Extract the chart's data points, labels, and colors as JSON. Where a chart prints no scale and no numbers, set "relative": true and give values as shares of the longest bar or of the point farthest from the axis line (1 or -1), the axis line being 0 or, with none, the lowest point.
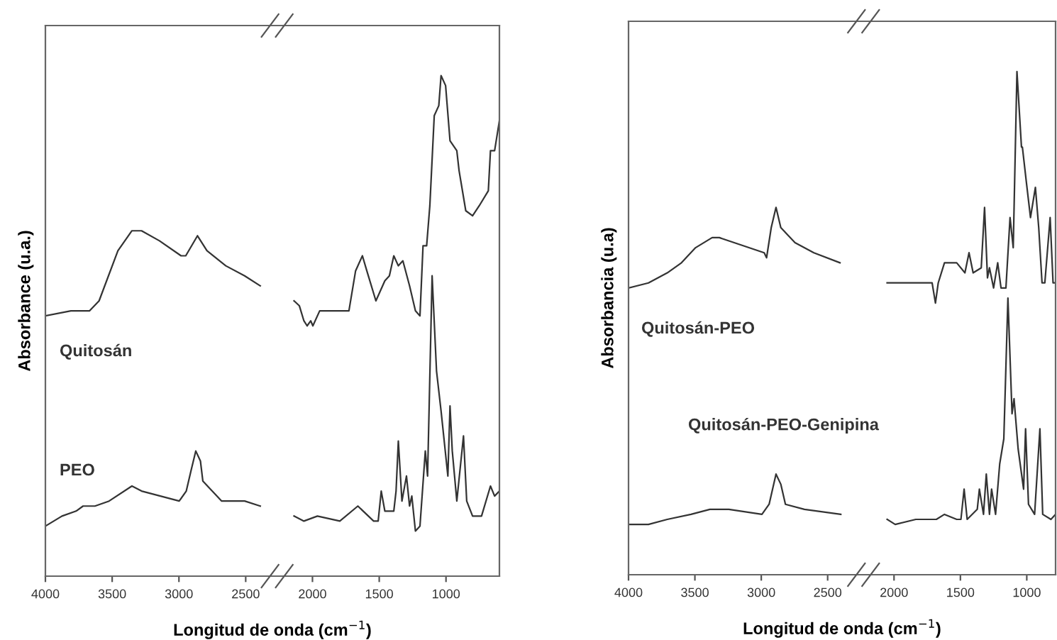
{
  "chart_data": [
    {
      "type": "line",
      "relative": true,
      "ylabel": "Absorbance (u.a.)",
      "xlabel": "Longitud de onda (cm$^{−1}$)",
      "xlim": [
        4000,
        600
      ],
      "xticks": [
        4000,
        3500,
        3000,
        2500,
        2000,
        1500,
        1000
      ],
      "series": [
        {
          "name": "Quitosán",
          "color": "#333333",
          "x": [
            4000,
            3809,
            3669,
            3598,
            3457,
            3352,
            3280,
            3146,
            2984,
            2949,
            2861,
            2790,
            2649,
            2508,
            2391,
            null,
            2138,
            2098,
            2064,
            2040,
            2013,
            1997,
            1946,
            1795,
            1727,
            1677,
            1626,
            1593,
            1525,
            1458,
            1424,
            1391,
            1357,
            1323,
            1273,
            1229,
            1195,
            1172,
            1145,
            1121,
            1088,
            1054,
            1037,
            1003,
            970,
            919,
            902,
            852,
            801,
            751,
            683,
            667,
            636,
            600
          ],
          "values": [
            0.52,
            0.53,
            0.53,
            0.55,
            0.65,
            0.69,
            0.69,
            0.67,
            0.64,
            0.64,
            0.68,
            0.65,
            0.62,
            0.6,
            0.58,
            null,
            0.55,
            0.54,
            0.51,
            0.5,
            0.51,
            0.5,
            0.53,
            0.53,
            0.53,
            0.61,
            0.64,
            0.61,
            0.55,
            0.59,
            0.6,
            0.64,
            0.62,
            0.63,
            0.58,
            0.53,
            0.52,
            0.66,
            0.66,
            0.74,
            0.92,
            0.94,
            1.0,
            0.98,
            0.87,
            0.85,
            0.81,
            0.73,
            0.72,
            0.74,
            0.77,
            0.85,
            0.85,
            0.91
          ]
        },
        {
          "name": "PEO",
          "color": "#333333",
          "x": [
            4000,
            3876,
            3770,
            3718,
            3629,
            3523,
            3352,
            3280,
            2998,
            2945,
            2910,
            2874,
            2839,
            2821,
            2680,
            2508,
            2391,
            null,
            2138,
            2064,
            1963,
            1795,
            1660,
            1542,
            1508,
            1485,
            1458,
            1391,
            1374,
            1357,
            1330,
            1296,
            1273,
            1256,
            1229,
            1195,
            1155,
            1138,
            1104,
            1071,
            1037,
            986,
            970,
            953,
            919,
            869,
            845,
            801,
            734,
            667,
            636,
            600
          ],
          "values": [
            0.1,
            0.12,
            0.13,
            0.14,
            0.14,
            0.15,
            0.18,
            0.17,
            0.15,
            0.17,
            0.21,
            0.25,
            0.23,
            0.19,
            0.15,
            0.15,
            0.14,
            null,
            0.12,
            0.11,
            0.12,
            0.11,
            0.14,
            0.11,
            0.11,
            0.17,
            0.13,
            0.13,
            0.17,
            0.27,
            0.15,
            0.2,
            0.14,
            0.16,
            0.09,
            0.1,
            0.25,
            0.2,
            0.6,
            0.41,
            0.33,
            0.2,
            0.34,
            0.25,
            0.15,
            0.28,
            0.15,
            0.12,
            0.12,
            0.18,
            0.16,
            0.17
          ]
        }
      ]
    },
    {
      "type": "line",
      "relative": true,
      "ylabel": "Absorbancia (u.a)",
      "xlabel": "Longitud de onda (cm$^{−1}$)",
      "xlim": [
        4000,
        783
      ],
      "xticks": [
        4000,
        3500,
        3000,
        2500,
        2000,
        1500,
        1000
      ],
      "series": [
        {
          "name": "Quitosán-PEO",
          "color": "#333333",
          "x": [
            4000,
            3850,
            3708,
            3601,
            3495,
            3370,
            3316,
            2978,
            2960,
            2925,
            2889,
            2853,
            2746,
            2604,
            2407,
            null,
            2052,
            1991,
            1806,
            1713,
            1688,
            1667,
            1620,
            1528,
            1466,
            1435,
            1404,
            1343,
            1318,
            1296,
            1281,
            1250,
            1219,
            1194,
            1157,
            1126,
            1102,
            1074,
            1040,
            1033,
            1003,
            972,
            935,
            910,
            885,
            864,
            824,
            802,
            783
          ],
          "values": [
            0.57,
            0.58,
            0.6,
            0.62,
            0.65,
            0.67,
            0.67,
            0.64,
            0.63,
            0.69,
            0.73,
            0.69,
            0.66,
            0.64,
            0.62,
            null,
            0.58,
            0.58,
            0.58,
            0.58,
            0.54,
            0.58,
            0.62,
            0.62,
            0.6,
            0.64,
            0.6,
            0.61,
            0.73,
            0.59,
            0.61,
            0.57,
            0.62,
            0.57,
            0.57,
            0.71,
            0.65,
            1.0,
            0.85,
            0.85,
            0.78,
            0.71,
            0.77,
            0.69,
            0.58,
            0.58,
            0.71,
            0.58,
            0.58
          ]
        },
        {
          "name": "Quitosán-PEO-Genipina",
          "color": "#333333",
          "x": [
            4000,
            3850,
            3708,
            3529,
            3387,
            3244,
            2995,
            2941,
            2889,
            2853,
            2818,
            2675,
            2401,
            null,
            2052,
            1991,
            1836,
            1681,
            1620,
            1528,
            1496,
            1472,
            1449,
            1373,
            1357,
            1326,
            1305,
            1281,
            1265,
            1235,
            1204,
            1173,
            1142,
            1111,
            1096,
            1065,
            1024,
            1009,
            987,
            941,
            901,
            880,
            818,
            783
          ],
          "values": [
            0.1,
            0.1,
            0.11,
            0.12,
            0.13,
            0.13,
            0.12,
            0.14,
            0.2,
            0.18,
            0.14,
            0.13,
            0.12,
            null,
            0.11,
            0.1,
            0.11,
            0.11,
            0.12,
            0.11,
            0.11,
            0.17,
            0.11,
            0.13,
            0.17,
            0.12,
            0.2,
            0.12,
            0.17,
            0.12,
            0.22,
            0.27,
            0.55,
            0.32,
            0.35,
            0.25,
            0.17,
            0.29,
            0.14,
            0.12,
            0.29,
            0.12,
            0.11,
            0.12
          ]
        }
      ]
    }
  ]
}
